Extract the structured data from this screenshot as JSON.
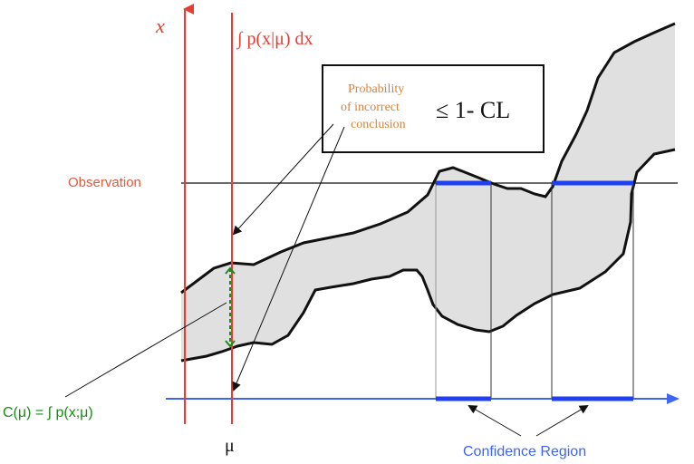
{
  "labels": {
    "x_axis_symbol": "x",
    "mu_symbol": "μ",
    "observation": "Observation",
    "integral": "∫ p(x|μ) dx",
    "prob_line1": "Probability",
    "prob_line2": "of incorrect",
    "prob_line3": "conclusion",
    "leq_cl": "≤ 1- CL",
    "coverage_formula": "C(μ) = ∫ p(x;μ)",
    "confidence_region": "Confidence Region"
  },
  "colors": {
    "axis_red": "#e53d32",
    "axis_blue": "#3f66f2",
    "region_blue": "#1e3ff2",
    "band_fill": "#e0e0e0",
    "text_orange": "#d6843c",
    "green": "#1a8b17",
    "label_blue": "#3f66f2",
    "observation_red": "#e05a3e",
    "black": "#111111"
  }
}
